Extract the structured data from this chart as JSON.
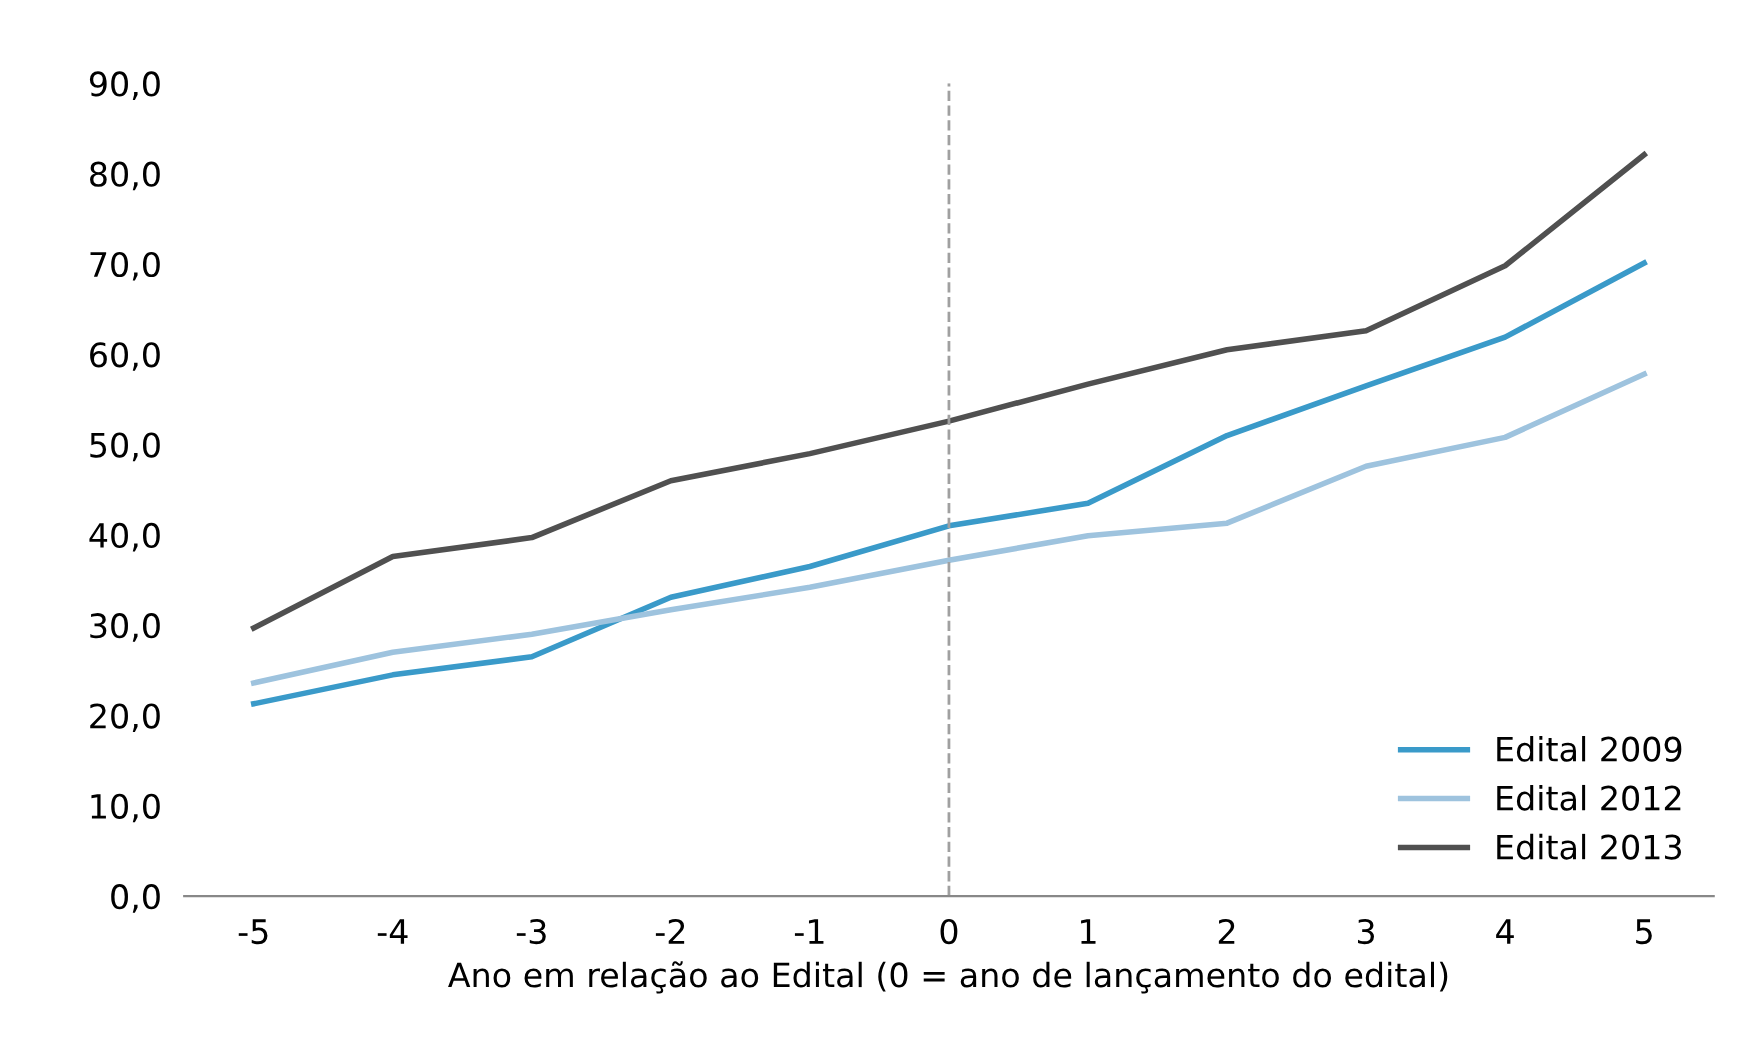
{
  "chart_data": {
    "type": "line",
    "xlabel": "Ano em relação ao Edital (0 = ano de lançamento do edital)",
    "x": [
      -5,
      -4,
      -3,
      -2,
      -1,
      0,
      1,
      2,
      3,
      4,
      5
    ],
    "series": [
      {
        "name": "Edital 2009",
        "color": "#3a9ac9",
        "values": [
          21.3,
          24.5,
          26.5,
          33.1,
          36.5,
          41.0,
          43.5,
          51.0,
          56.5,
          61.9,
          70.1
        ]
      },
      {
        "name": "Edital 2012",
        "color": "#9ec3de",
        "values": [
          23.6,
          27.0,
          29.0,
          31.7,
          34.2,
          37.2,
          39.9,
          41.3,
          47.6,
          50.8,
          57.8
        ]
      },
      {
        "name": "Edital 2013",
        "color": "#505050",
        "values": [
          29.7,
          37.6,
          39.7,
          46.0,
          49.0,
          52.6,
          56.7,
          60.5,
          62.6,
          69.8,
          82.1
        ]
      }
    ],
    "xlim": [
      -5.5,
      5.5
    ],
    "xticks": [
      {
        "value": -5,
        "label": "-5"
      },
      {
        "value": -4,
        "label": "-4"
      },
      {
        "value": -3,
        "label": "-3"
      },
      {
        "value": -2,
        "label": "-2"
      },
      {
        "value": -1,
        "label": "-1"
      },
      0,
      1,
      2,
      3,
      4,
      5
    ],
    "ylim": [
      0,
      90
    ],
    "yticks": [
      {
        "value": 0,
        "label": "0,0"
      },
      {
        "value": 10,
        "label": "10,0"
      },
      {
        "value": 20,
        "label": "20,0"
      },
      {
        "value": 30,
        "label": "30,0"
      },
      {
        "value": 40,
        "label": "40,0"
      },
      {
        "value": 50,
        "label": "50,0"
      },
      {
        "value": 60,
        "label": "60,0"
      },
      {
        "value": 70,
        "label": "70,0"
      },
      {
        "value": 80,
        "label": "80,0"
      },
      {
        "value": 90,
        "label": "90,0"
      }
    ],
    "ref_lines": [
      {
        "axis": "x",
        "value": 0,
        "color": "#a0a0a0",
        "line_style": "dashed"
      }
    ],
    "legend": "bottom right",
    "grid": false,
    "marker": "none",
    "line_style": "solid"
  }
}
